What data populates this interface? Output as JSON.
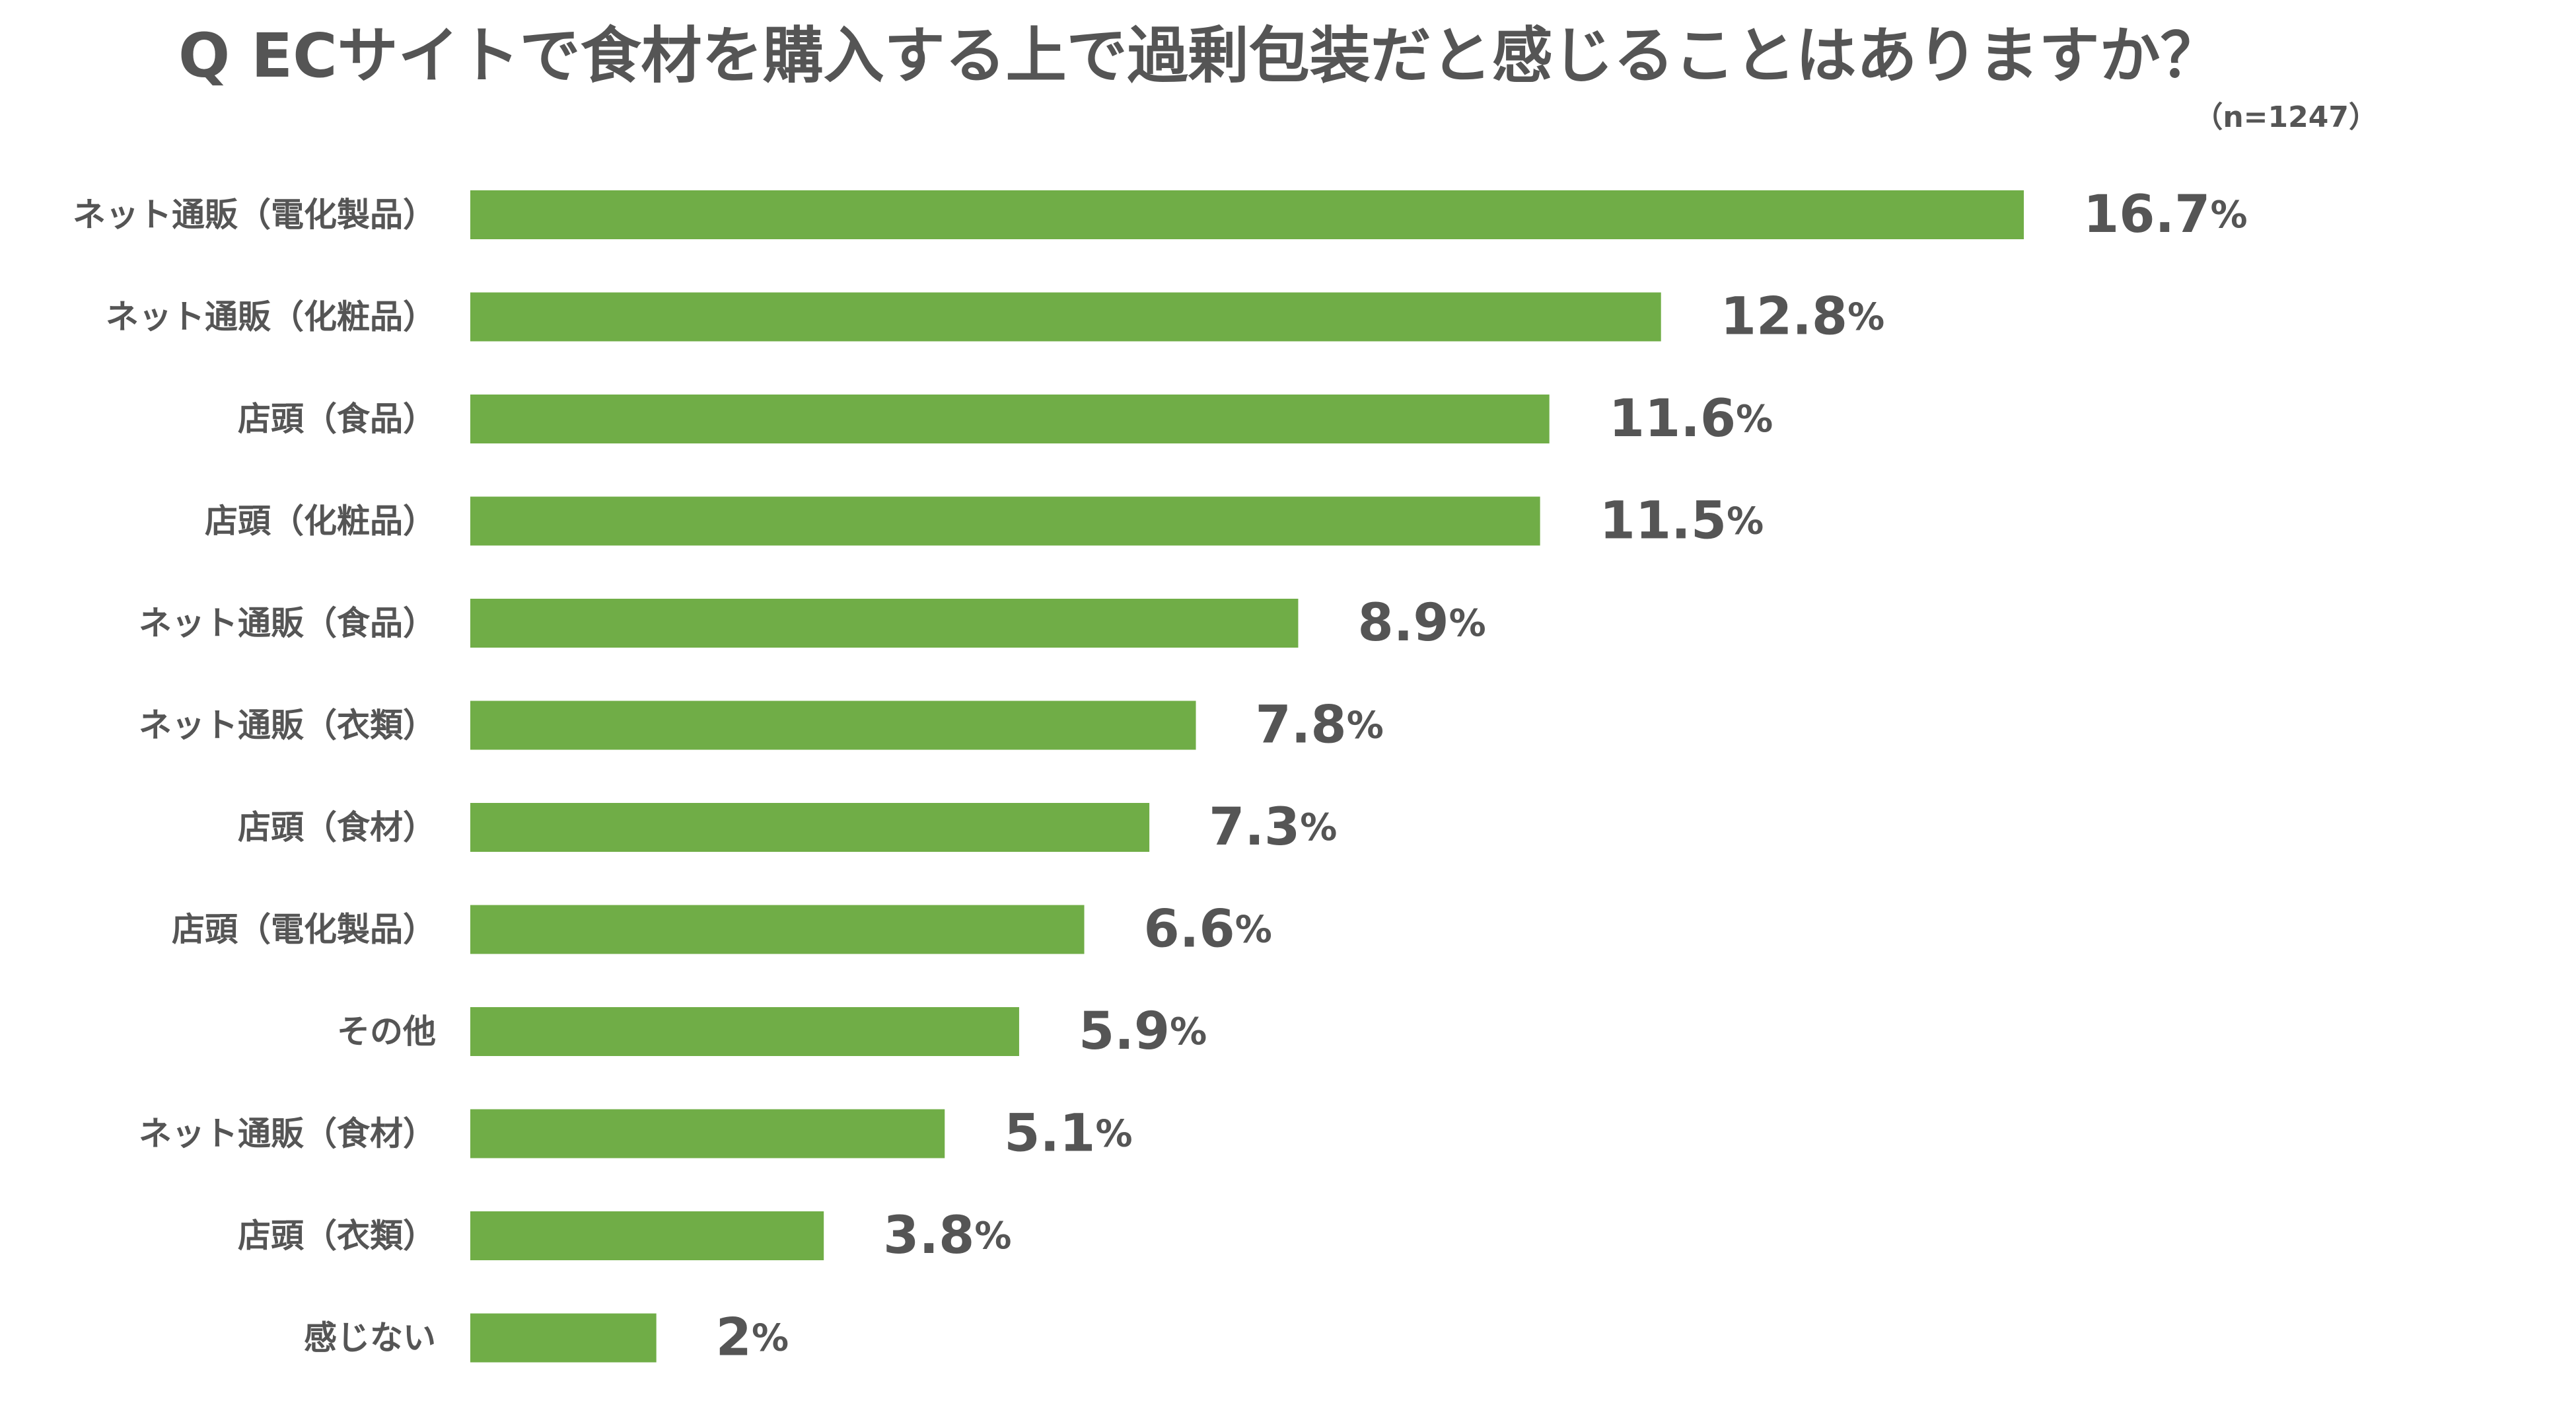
{
  "title": "Q ECサイトで食材を購入する上で過剰包装だと感じることはありますか？",
  "sample_size": "（n=1247）",
  "colors": {
    "bar": "#70AD47",
    "text": "#555555"
  },
  "chart_data": {
    "type": "bar",
    "orientation": "horizontal",
    "title": "Q ECサイトで食材を購入する上で過剰包装だと感じることはありますか？",
    "subtitle": "（n=1247）",
    "xlabel": "",
    "ylabel": "",
    "unit": "%",
    "grid": false,
    "legend": "none",
    "xlim": [
      0,
      16.7
    ],
    "categories": [
      "ネット通販（電化製品）",
      "ネット通販（化粧品）",
      "店頭（食品）",
      "店頭（化粧品）",
      "ネット通販（食品）",
      "ネット通販（衣類）",
      "店頭（食材）",
      "店頭（電化製品）",
      "その他",
      "ネット通販（食材）",
      "店頭（衣類）",
      "感じない"
    ],
    "values": [
      16.7,
      12.8,
      11.6,
      11.5,
      8.9,
      7.8,
      7.3,
      6.6,
      5.9,
      5.1,
      3.8,
      2
    ],
    "value_labels": [
      "16.7",
      "12.8",
      "11.6",
      "11.5",
      "8.9",
      "7.8",
      "7.3",
      "6.6",
      "5.9",
      "5.1",
      "3.8",
      "2"
    ]
  }
}
